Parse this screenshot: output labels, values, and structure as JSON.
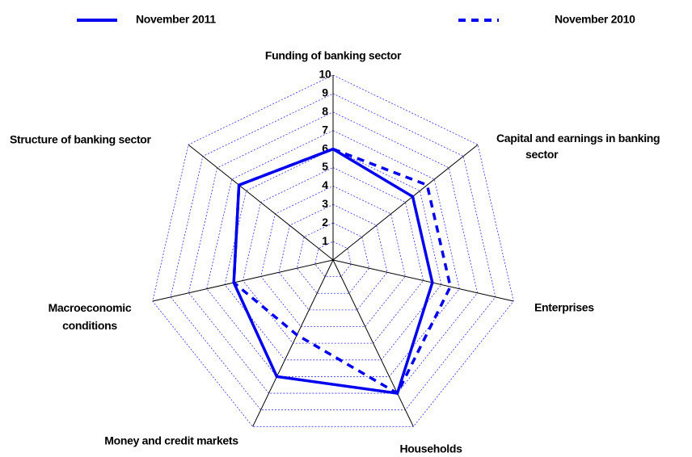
{
  "chart_data": {
    "type": "radar",
    "categories": [
      "Funding of banking sector",
      "Capital and earnings in banking sector",
      "Enterprises",
      "Households",
      "Money and credit markets",
      "Macroeconomic conditions",
      "Structure of banking sector"
    ],
    "series": [
      {
        "name": "November 2011",
        "color": "#0000ee",
        "dash": false,
        "values": [
          6,
          5.5,
          5.5,
          8,
          7,
          5.5,
          6.5
        ]
      },
      {
        "name": "November 2010",
        "color": "#0000ee",
        "dash": true,
        "values": [
          6,
          6.5,
          6.5,
          8,
          4.5,
          5.5,
          6.5
        ]
      }
    ],
    "rlim": [
      0,
      10
    ],
    "rticks": [
      1,
      2,
      3,
      4,
      5,
      6,
      7,
      8,
      9,
      10
    ],
    "grid": true,
    "legend": "top"
  }
}
